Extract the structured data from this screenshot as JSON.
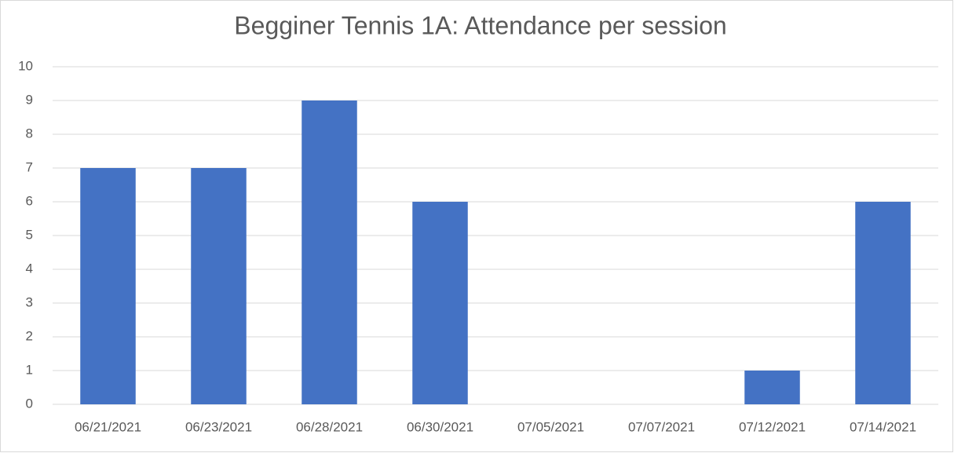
{
  "chart_data": {
    "type": "bar",
    "title": "Begginer Tennis 1A: Attendance per session",
    "categories": [
      "06/21/2021",
      "06/23/2021",
      "06/28/2021",
      "06/30/2021",
      "07/05/2021",
      "07/07/2021",
      "07/12/2021",
      "07/14/2021"
    ],
    "values": [
      7,
      7,
      9,
      6,
      0,
      0,
      1,
      6
    ],
    "color": "#4472c4",
    "ylim": [
      0,
      10
    ],
    "yticks": [
      0,
      1,
      2,
      3,
      4,
      5,
      6,
      7,
      8,
      9,
      10
    ],
    "grid": true
  }
}
